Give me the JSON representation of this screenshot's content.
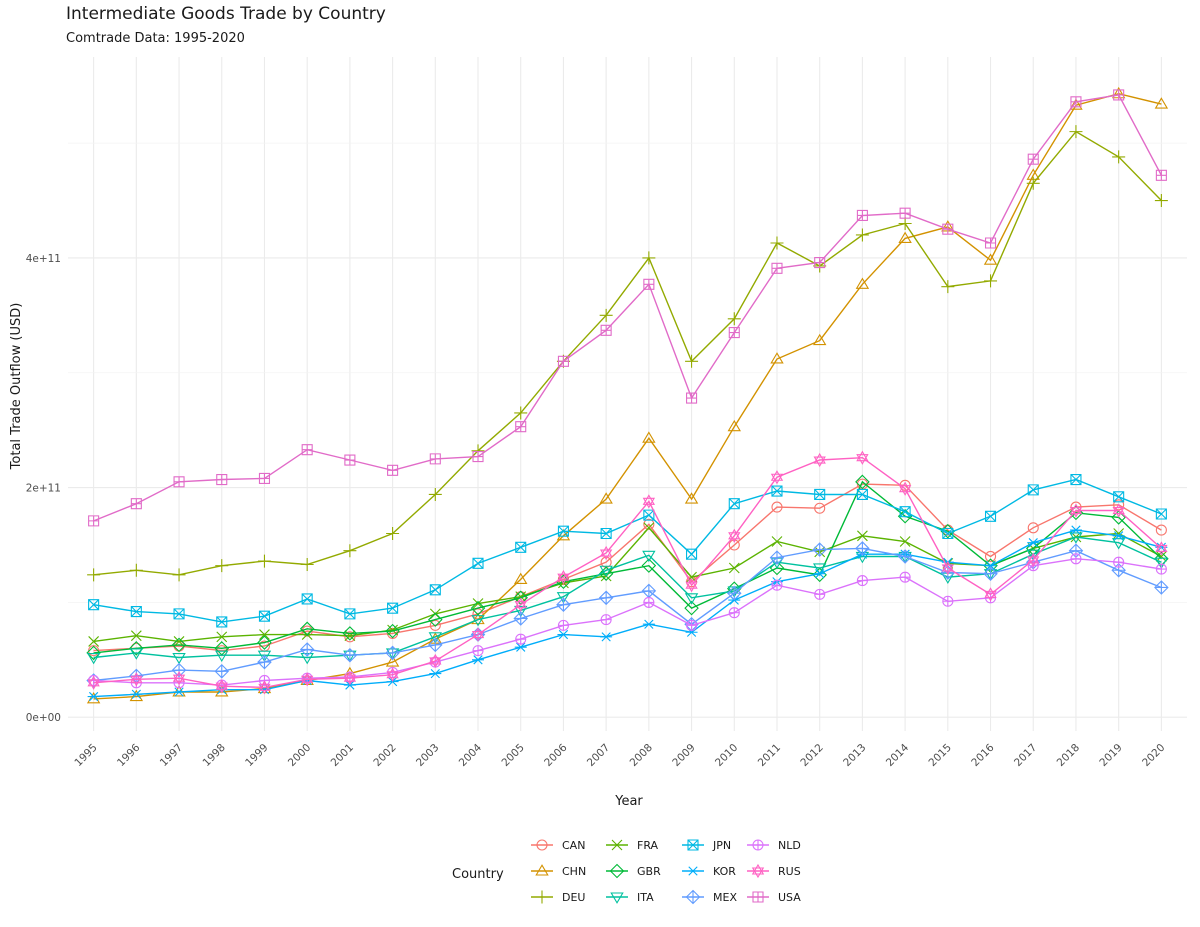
{
  "chart_data": {
    "type": "line",
    "title": "Intermediate Goods Trade by Country",
    "subtitle": "Comtrade Data: 1995-2020",
    "xlabel": "Year",
    "ylabel": "Total Trade Outflow (USD)",
    "x": [
      1995,
      1996,
      1997,
      1998,
      1999,
      2000,
      2001,
      2002,
      2003,
      2004,
      2005,
      2006,
      2007,
      2008,
      2009,
      2010,
      2011,
      2012,
      2013,
      2014,
      2015,
      2016,
      2017,
      2018,
      2019,
      2020
    ],
    "ylim": [
      -12000000000,
      575000000000
    ],
    "y_ticks": [
      0,
      200000000000,
      400000000000
    ],
    "y_tick_labels": [
      "0e+00",
      "2e+11",
      "4e+11"
    ],
    "grid": true,
    "legend": {
      "title": "Country",
      "position": "bottom"
    },
    "series": [
      {
        "name": "CAN",
        "color": "#F8766D",
        "marker": "circle",
        "values": [
          58000000000.0,
          60000000000.0,
          62000000000.0,
          58000000000.0,
          62000000000.0,
          75000000000.0,
          70000000000.0,
          73000000000.0,
          80000000000.0,
          90000000000.0,
          105000000000.0,
          120000000000.0,
          135000000000.0,
          168000000000.0,
          118000000000.0,
          150000000000.0,
          183000000000.0,
          182000000000.0,
          203000000000.0,
          202000000000.0,
          163000000000.0,
          140000000000.0,
          165000000000.0,
          183000000000.0,
          185000000000.0,
          163000000000.0
        ]
      },
      {
        "name": "CHN",
        "color": "#D39200",
        "marker": "triangle",
        "values": [
          16000000000.0,
          18000000000.0,
          22000000000.0,
          22000000000.0,
          25000000000.0,
          32000000000.0,
          38000000000.0,
          48000000000.0,
          68000000000.0,
          85000000000.0,
          120000000000.0,
          158000000000.0,
          190000000000.0,
          243000000000.0,
          190000000000.0,
          253000000000.0,
          312000000000.0,
          328000000000.0,
          377000000000.0,
          417000000000.0,
          427000000000.0,
          398000000000.0,
          472000000000.0,
          533000000000.0,
          543000000000.0,
          534000000000.0
        ]
      },
      {
        "name": "DEU",
        "color": "#93AA00",
        "marker": "plus",
        "values": [
          124000000000.0,
          128000000000.0,
          124000000000.0,
          132000000000.0,
          136000000000.0,
          133000000000.0,
          145000000000.0,
          160000000000.0,
          194000000000.0,
          232000000000.0,
          265000000000.0,
          310000000000.0,
          350000000000.0,
          400000000000.0,
          310000000000.0,
          347000000000.0,
          413000000000.0,
          393000000000.0,
          420000000000.0,
          430000000000.0,
          375000000000.0,
          380000000000.0,
          465000000000.0,
          510000000000.0,
          488000000000.0,
          450000000000.0
        ]
      },
      {
        "name": "FRA",
        "color": "#5BB300",
        "marker": "cross",
        "values": [
          66000000000.0,
          71000000000.0,
          66000000000.0,
          70000000000.0,
          72000000000.0,
          72000000000.0,
          71000000000.0,
          76000000000.0,
          90000000000.0,
          99000000000.0,
          105000000000.0,
          117000000000.0,
          123000000000.0,
          165000000000.0,
          122000000000.0,
          130000000000.0,
          153000000000.0,
          144000000000.0,
          158000000000.0,
          153000000000.0,
          134000000000.0,
          132000000000.0,
          147000000000.0,
          157000000000.0,
          160000000000.0,
          140000000000.0
        ]
      },
      {
        "name": "GBR",
        "color": "#00BA38",
        "marker": "diamond",
        "values": [
          56000000000.0,
          60000000000.0,
          63000000000.0,
          60000000000.0,
          65000000000.0,
          77000000000.0,
          73000000000.0,
          75000000000.0,
          85000000000.0,
          95000000000.0,
          104000000000.0,
          118000000000.0,
          125000000000.0,
          132000000000.0,
          95000000000.0,
          112000000000.0,
          130000000000.0,
          124000000000.0,
          205000000000.0,
          175000000000.0,
          162000000000.0,
          132000000000.0,
          147000000000.0,
          178000000000.0,
          174000000000.0,
          138000000000.0
        ]
      },
      {
        "name": "ITA",
        "color": "#00C19F",
        "marker": "triangle-down",
        "values": [
          52000000000.0,
          56000000000.0,
          52000000000.0,
          54000000000.0,
          54000000000.0,
          52000000000.0,
          54000000000.0,
          56000000000.0,
          70000000000.0,
          85000000000.0,
          93000000000.0,
          105000000000.0,
          128000000000.0,
          141000000000.0,
          104000000000.0,
          110000000000.0,
          135000000000.0,
          130000000000.0,
          140000000000.0,
          140000000000.0,
          122000000000.0,
          125000000000.0,
          142000000000.0,
          157000000000.0,
          152000000000.0,
          135000000000.0
        ]
      },
      {
        "name": "JPN",
        "color": "#00B9E3",
        "marker": "square-x",
        "values": [
          98000000000.0,
          92000000000.0,
          90000000000.0,
          83000000000.0,
          88000000000.0,
          103000000000.0,
          90000000000.0,
          95000000000.0,
          111000000000.0,
          134000000000.0,
          148000000000.0,
          162000000000.0,
          160000000000.0,
          176000000000.0,
          142000000000.0,
          186000000000.0,
          197000000000.0,
          194000000000.0,
          194000000000.0,
          179000000000.0,
          160000000000.0,
          175000000000.0,
          198000000000.0,
          207000000000.0,
          192000000000.0,
          177000000000.0
        ]
      },
      {
        "name": "KOR",
        "color": "#00ADFA",
        "marker": "asterisk",
        "values": [
          18000000000.0,
          20000000000.0,
          22000000000.0,
          24000000000.0,
          24000000000.0,
          32000000000.0,
          28000000000.0,
          31000000000.0,
          38000000000.0,
          50000000000.0,
          61000000000.0,
          72000000000.0,
          70000000000.0,
          81000000000.0,
          74000000000.0,
          102000000000.0,
          118000000000.0,
          125000000000.0,
          142000000000.0,
          142000000000.0,
          135000000000.0,
          132000000000.0,
          152000000000.0,
          163000000000.0,
          158000000000.0,
          148000000000.0
        ]
      },
      {
        "name": "MEX",
        "color": "#619CFF",
        "marker": "diamond-plus",
        "values": [
          32000000000.0,
          36000000000.0,
          41000000000.0,
          40000000000.0,
          48000000000.0,
          59000000000.0,
          54000000000.0,
          56000000000.0,
          63000000000.0,
          72000000000.0,
          86000000000.0,
          98000000000.0,
          104000000000.0,
          110000000000.0,
          81000000000.0,
          108000000000.0,
          139000000000.0,
          146000000000.0,
          147000000000.0,
          140000000000.0,
          126000000000.0,
          125000000000.0,
          135000000000.0,
          145000000000.0,
          128000000000.0,
          113000000000.0
        ]
      },
      {
        "name": "NLD",
        "color": "#DB72FB",
        "marker": "circle-plus",
        "values": [
          32000000000.0,
          30000000000.0,
          30000000000.0,
          28000000000.0,
          32000000000.0,
          34000000000.0,
          35000000000.0,
          39000000000.0,
          48000000000.0,
          58000000000.0,
          68000000000.0,
          80000000000.0,
          85000000000.0,
          100000000000.0,
          80000000000.0,
          91000000000.0,
          115000000000.0,
          107000000000.0,
          119000000000.0,
          122000000000.0,
          101000000000.0,
          104000000000.0,
          132000000000.0,
          138000000000.0,
          135000000000.0,
          129000000000.0
        ]
      },
      {
        "name": "RUS",
        "color": "#FF61C3",
        "marker": "star",
        "values": [
          30000000000.0,
          33000000000.0,
          34000000000.0,
          27000000000.0,
          26000000000.0,
          33000000000.0,
          34000000000.0,
          37000000000.0,
          49000000000.0,
          72000000000.0,
          98000000000.0,
          122000000000.0,
          143000000000.0,
          188000000000.0,
          115000000000.0,
          158000000000.0,
          209000000000.0,
          224000000000.0,
          226000000000.0,
          199000000000.0,
          130000000000.0,
          107000000000.0,
          137000000000.0,
          180000000000.0,
          180000000000.0,
          147000000000.0
        ]
      },
      {
        "name": "USA",
        "color": "#E16BC8",
        "marker": "square-plus",
        "values": [
          171000000000.0,
          186000000000.0,
          205000000000.0,
          207000000000.0,
          208000000000.0,
          233000000000.0,
          224000000000.0,
          215000000000.0,
          225000000000.0,
          227000000000.0,
          253000000000.0,
          310000000000.0,
          337000000000.0,
          377000000000.0,
          278000000000.0,
          335000000000.0,
          391000000000.0,
          396000000000.0,
          437000000000.0,
          439000000000.0,
          425000000000.0,
          413000000000.0,
          486000000000.0,
          536000000000.0,
          542000000000.0,
          472000000000.0
        ]
      }
    ]
  }
}
